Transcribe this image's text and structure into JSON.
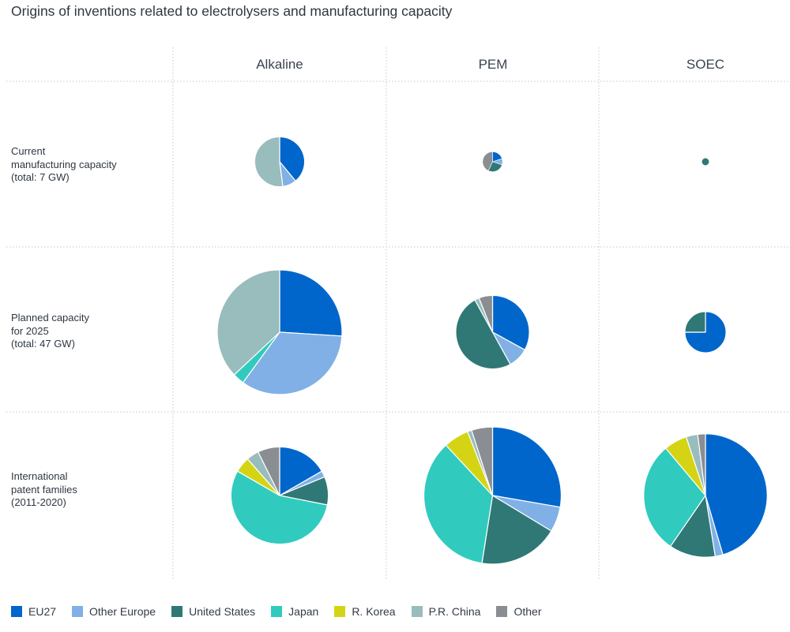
{
  "title": "Origins of inventions related to electrolysers and manufacturing capacity",
  "columns": [
    "Alkaline",
    "PEM",
    "SOEC"
  ],
  "rows": [
    {
      "label_lines": [
        "Current",
        "manufacturing capacity",
        "(total: 7 GW)"
      ]
    },
    {
      "label_lines": [
        "Planned capacity",
        "for 2025",
        "(total: 47 GW)"
      ]
    },
    {
      "label_lines": [
        "International",
        "patent families",
        "(2011-2020)"
      ]
    }
  ],
  "legend": [
    {
      "name": "EU27",
      "color": "#0066cc"
    },
    {
      "name": "Other Europe",
      "color": "#80b0e6"
    },
    {
      "name": "United States",
      "color": "#2f7876"
    },
    {
      "name": "Japan",
      "color": "#30cbbe"
    },
    {
      "name": "R. Korea",
      "color": "#d4d414"
    },
    {
      "name": "P.R. China",
      "color": "#99bcbd"
    },
    {
      "name": "Other",
      "color": "#8a8d92"
    }
  ],
  "chart_data": {
    "type": "pie",
    "title": "Origins of inventions related to electrolysers and manufacturing capacity",
    "series_names": [
      "EU27",
      "Other Europe",
      "United States",
      "Japan",
      "R. Korea",
      "P.R. China",
      "Other"
    ],
    "pies": [
      {
        "row": "Current manufacturing capacity (total: 7 GW)",
        "column": "Alkaline",
        "relative_size": 0.4,
        "values": [
          39,
          9,
          0,
          0,
          0,
          52,
          0
        ]
      },
      {
        "row": "Current manufacturing capacity (total: 7 GW)",
        "column": "PEM",
        "relative_size": 0.16,
        "values": [
          20,
          10,
          27,
          0,
          0,
          0,
          43
        ]
      },
      {
        "row": "Current manufacturing capacity (total: 7 GW)",
        "column": "SOEC",
        "relative_size": 0.06,
        "values": [
          0,
          0,
          100,
          0,
          0,
          0,
          0
        ]
      },
      {
        "row": "Planned capacity for 2025 (total: 47 GW)",
        "column": "Alkaline",
        "relative_size": 1.0,
        "values": [
          26,
          34,
          0,
          3,
          0,
          37,
          0
        ]
      },
      {
        "row": "Planned capacity for 2025 (total: 47 GW)",
        "column": "PEM",
        "relative_size": 0.59,
        "values": [
          33,
          9,
          50,
          0,
          0,
          2,
          6
        ]
      },
      {
        "row": "Planned capacity for 2025 (total: 47 GW)",
        "column": "SOEC",
        "relative_size": 0.33,
        "values": [
          75,
          0,
          25,
          0,
          0,
          0,
          0
        ]
      },
      {
        "row": "International patent families (2011-2020)",
        "column": "Alkaline",
        "relative_size": 0.78,
        "values": [
          16,
          2,
          9,
          53,
          5,
          4,
          7
        ]
      },
      {
        "row": "International patent families (2011-2020)",
        "column": "PEM",
        "relative_size": 1.1,
        "values": [
          28,
          6,
          19,
          36,
          6,
          1,
          5
        ]
      },
      {
        "row": "International patent families (2011-2020)",
        "column": "SOEC",
        "relative_size": 0.99,
        "values": [
          45,
          2,
          12,
          29,
          6,
          3,
          2
        ]
      }
    ]
  }
}
